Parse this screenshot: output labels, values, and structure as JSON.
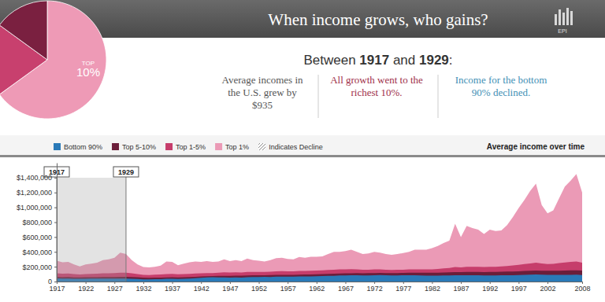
{
  "header": {
    "title": "When income grows, who gains?",
    "logo": "EPI"
  },
  "panel": {
    "subtitle": [
      "Between ",
      "1917",
      " and ",
      "1929",
      ":"
    ],
    "facts": [
      [
        "Average incomes in",
        "the U.S. grew by",
        "$935"
      ],
      [
        "All growth went to the",
        "richest 10%."
      ],
      [
        "Income for the bottom",
        "90% declined."
      ]
    ]
  },
  "chart_data": [
    {
      "type": "pie",
      "values": [
        65,
        20,
        15
      ],
      "colors": [
        "#ee9ab6",
        "#c8406e",
        "#7a2040"
      ],
      "annotations": [
        "TOP",
        "10%"
      ]
    },
    {
      "type": "area",
      "title": "Average income over time",
      "x": [
        1917,
        1918,
        1919,
        1920,
        1921,
        1922,
        1923,
        1924,
        1925,
        1926,
        1927,
        1928,
        1929,
        1930,
        1931,
        1932,
        1933,
        1934,
        1935,
        1936,
        1937,
        1938,
        1939,
        1940,
        1941,
        1942,
        1943,
        1944,
        1945,
        1946,
        1947,
        1948,
        1949,
        1950,
        1951,
        1952,
        1953,
        1954,
        1955,
        1956,
        1957,
        1958,
        1959,
        1960,
        1961,
        1962,
        1963,
        1964,
        1965,
        1966,
        1967,
        1968,
        1969,
        1970,
        1971,
        1972,
        1973,
        1974,
        1975,
        1976,
        1977,
        1978,
        1979,
        1980,
        1981,
        1982,
        1983,
        1984,
        1985,
        1986,
        1987,
        1988,
        1989,
        1990,
        1991,
        1992,
        1993,
        1994,
        1995,
        1996,
        1997,
        1998,
        1999,
        2000,
        2001,
        2002,
        2003,
        2004,
        2005,
        2006,
        2007,
        2008
      ],
      "series": [
        {
          "name": "Bottom 90%",
          "color": "#2a7ab8",
          "values": [
            42000,
            40000,
            41000,
            38000,
            36000,
            38000,
            40000,
            40000,
            40000,
            40000,
            40000,
            40000,
            41000,
            38000,
            35000,
            30000,
            29000,
            31000,
            33000,
            36000,
            37000,
            35000,
            37000,
            39000,
            44000,
            50000,
            55000,
            57000,
            56000,
            55000,
            54000,
            55000,
            54000,
            58000,
            60000,
            61000,
            63000,
            62000,
            65000,
            67000,
            67000,
            66000,
            69000,
            69000,
            70000,
            72000,
            73000,
            76000,
            78000,
            81000,
            82000,
            84000,
            85000,
            83000,
            83000,
            86000,
            87000,
            84000,
            82000,
            83000,
            84000,
            85000,
            85000,
            82000,
            80000,
            79000,
            80000,
            82000,
            83000,
            84000,
            85000,
            86000,
            86000,
            84000,
            82000,
            83000,
            83000,
            84000,
            85000,
            86000,
            88000,
            91000,
            93000,
            95000,
            93000,
            91000,
            90000,
            90000,
            90000,
            91000,
            92000,
            88000
          ]
        },
        {
          "name": "Top 5-10%",
          "color": "#6b1e3a",
          "values": [
            60000,
            58000,
            60000,
            56000,
            55000,
            57000,
            58000,
            59000,
            60000,
            61000,
            62000,
            63000,
            63000,
            60000,
            57000,
            52000,
            50000,
            52000,
            54000,
            56000,
            57000,
            56000,
            58000,
            60000,
            64000,
            68000,
            72000,
            74000,
            76000,
            78000,
            78000,
            80000,
            79000,
            83000,
            84000,
            85000,
            86000,
            87000,
            89000,
            91000,
            91000,
            91000,
            94000,
            95000,
            96000,
            98000,
            100000,
            103000,
            106000,
            109000,
            110000,
            112000,
            113000,
            112000,
            113000,
            115000,
            117000,
            114000,
            113000,
            115000,
            116000,
            118000,
            119000,
            118000,
            118000,
            118000,
            120000,
            122000,
            125000,
            128000,
            128000,
            130000,
            131000,
            130000,
            128000,
            130000,
            131000,
            132000,
            134000,
            136000,
            139000,
            142000,
            146000,
            148000,
            147000,
            145000,
            145000,
            147000,
            149000,
            151000,
            152000,
            148000
          ]
        },
        {
          "name": "Top 1-5%",
          "color": "#c63d6b",
          "values": [
            110000,
            105000,
            108000,
            100000,
            95000,
            100000,
            103000,
            105000,
            110000,
            112000,
            115000,
            120000,
            118000,
            110000,
            100000,
            90000,
            88000,
            92000,
            95000,
            100000,
            102000,
            98000,
            100000,
            103000,
            108000,
            112000,
            115000,
            115000,
            118000,
            125000,
            122000,
            125000,
            122000,
            130000,
            130000,
            130000,
            130000,
            132000,
            138000,
            140000,
            138000,
            137000,
            142000,
            142000,
            145000,
            148000,
            150000,
            155000,
            160000,
            165000,
            165000,
            168000,
            165000,
            160000,
            160000,
            165000,
            165000,
            158000,
            155000,
            158000,
            160000,
            163000,
            165000,
            165000,
            163000,
            165000,
            170000,
            178000,
            182000,
            195000,
            190000,
            200000,
            200000,
            198000,
            195000,
            200000,
            200000,
            203000,
            210000,
            218000,
            225000,
            235000,
            245000,
            255000,
            245000,
            235000,
            238000,
            248000,
            258000,
            265000,
            270000,
            255000
          ]
        },
        {
          "name": "Top 1%",
          "color": "#eb9ab6",
          "values": [
            280000,
            260000,
            265000,
            230000,
            205000,
            230000,
            240000,
            255000,
            290000,
            300000,
            320000,
            390000,
            370000,
            290000,
            230000,
            195000,
            190000,
            200000,
            215000,
            270000,
            265000,
            220000,
            240000,
            260000,
            270000,
            265000,
            275000,
            265000,
            270000,
            300000,
            275000,
            290000,
            275000,
            310000,
            290000,
            280000,
            270000,
            290000,
            315000,
            320000,
            305000,
            300000,
            330000,
            320000,
            335000,
            335000,
            340000,
            370000,
            400000,
            400000,
            410000,
            430000,
            400000,
            370000,
            380000,
            400000,
            390000,
            370000,
            360000,
            370000,
            385000,
            400000,
            430000,
            430000,
            430000,
            450000,
            480000,
            520000,
            550000,
            780000,
            600000,
            750000,
            720000,
            700000,
            640000,
            700000,
            680000,
            690000,
            760000,
            870000,
            990000,
            1100000,
            1220000,
            1320000,
            1030000,
            920000,
            960000,
            1120000,
            1280000,
            1360000,
            1450000,
            1200000
          ]
        }
      ],
      "xlim": [
        1917,
        2008
      ],
      "xticks": [
        1917,
        1922,
        1927,
        1932,
        1937,
        1942,
        1947,
        1952,
        1957,
        1962,
        1967,
        1972,
        1977,
        1982,
        1987,
        1992,
        1997,
        2002,
        2008
      ],
      "ylim": [
        0,
        1600000
      ],
      "yticks": [
        0,
        {
          "value": 200000,
          "label": "$200,000"
        },
        {
          "value": 400000,
          "label": "$400,000"
        },
        {
          "value": 600000,
          "label": "$600,000"
        },
        {
          "value": 800000,
          "label": "$800,000"
        },
        {
          "value": 1000000,
          "label": "$1,000,000"
        },
        {
          "value": 1200000,
          "label": "$1,200,000"
        },
        {
          "value": 1400000,
          "label": "$1,400,000"
        }
      ],
      "stacked": false,
      "grid": false,
      "legend": "top",
      "highlight": [
        1917,
        1929
      ],
      "decline_label": "Indicates Decline"
    }
  ]
}
